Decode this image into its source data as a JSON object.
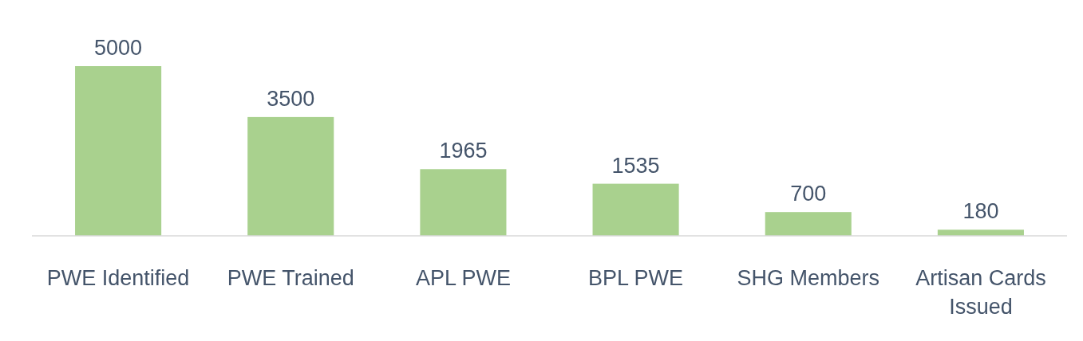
{
  "chart_data": {
    "type": "bar",
    "categories": [
      "PWE Identified",
      "PWE Trained",
      "APL PWE",
      "BPL PWE",
      "SHG Members",
      "Artisan Cards Issued"
    ],
    "values": [
      5000,
      3500,
      1965,
      1535,
      700,
      180
    ],
    "color": "#a9d18e",
    "data_labels": true
  }
}
